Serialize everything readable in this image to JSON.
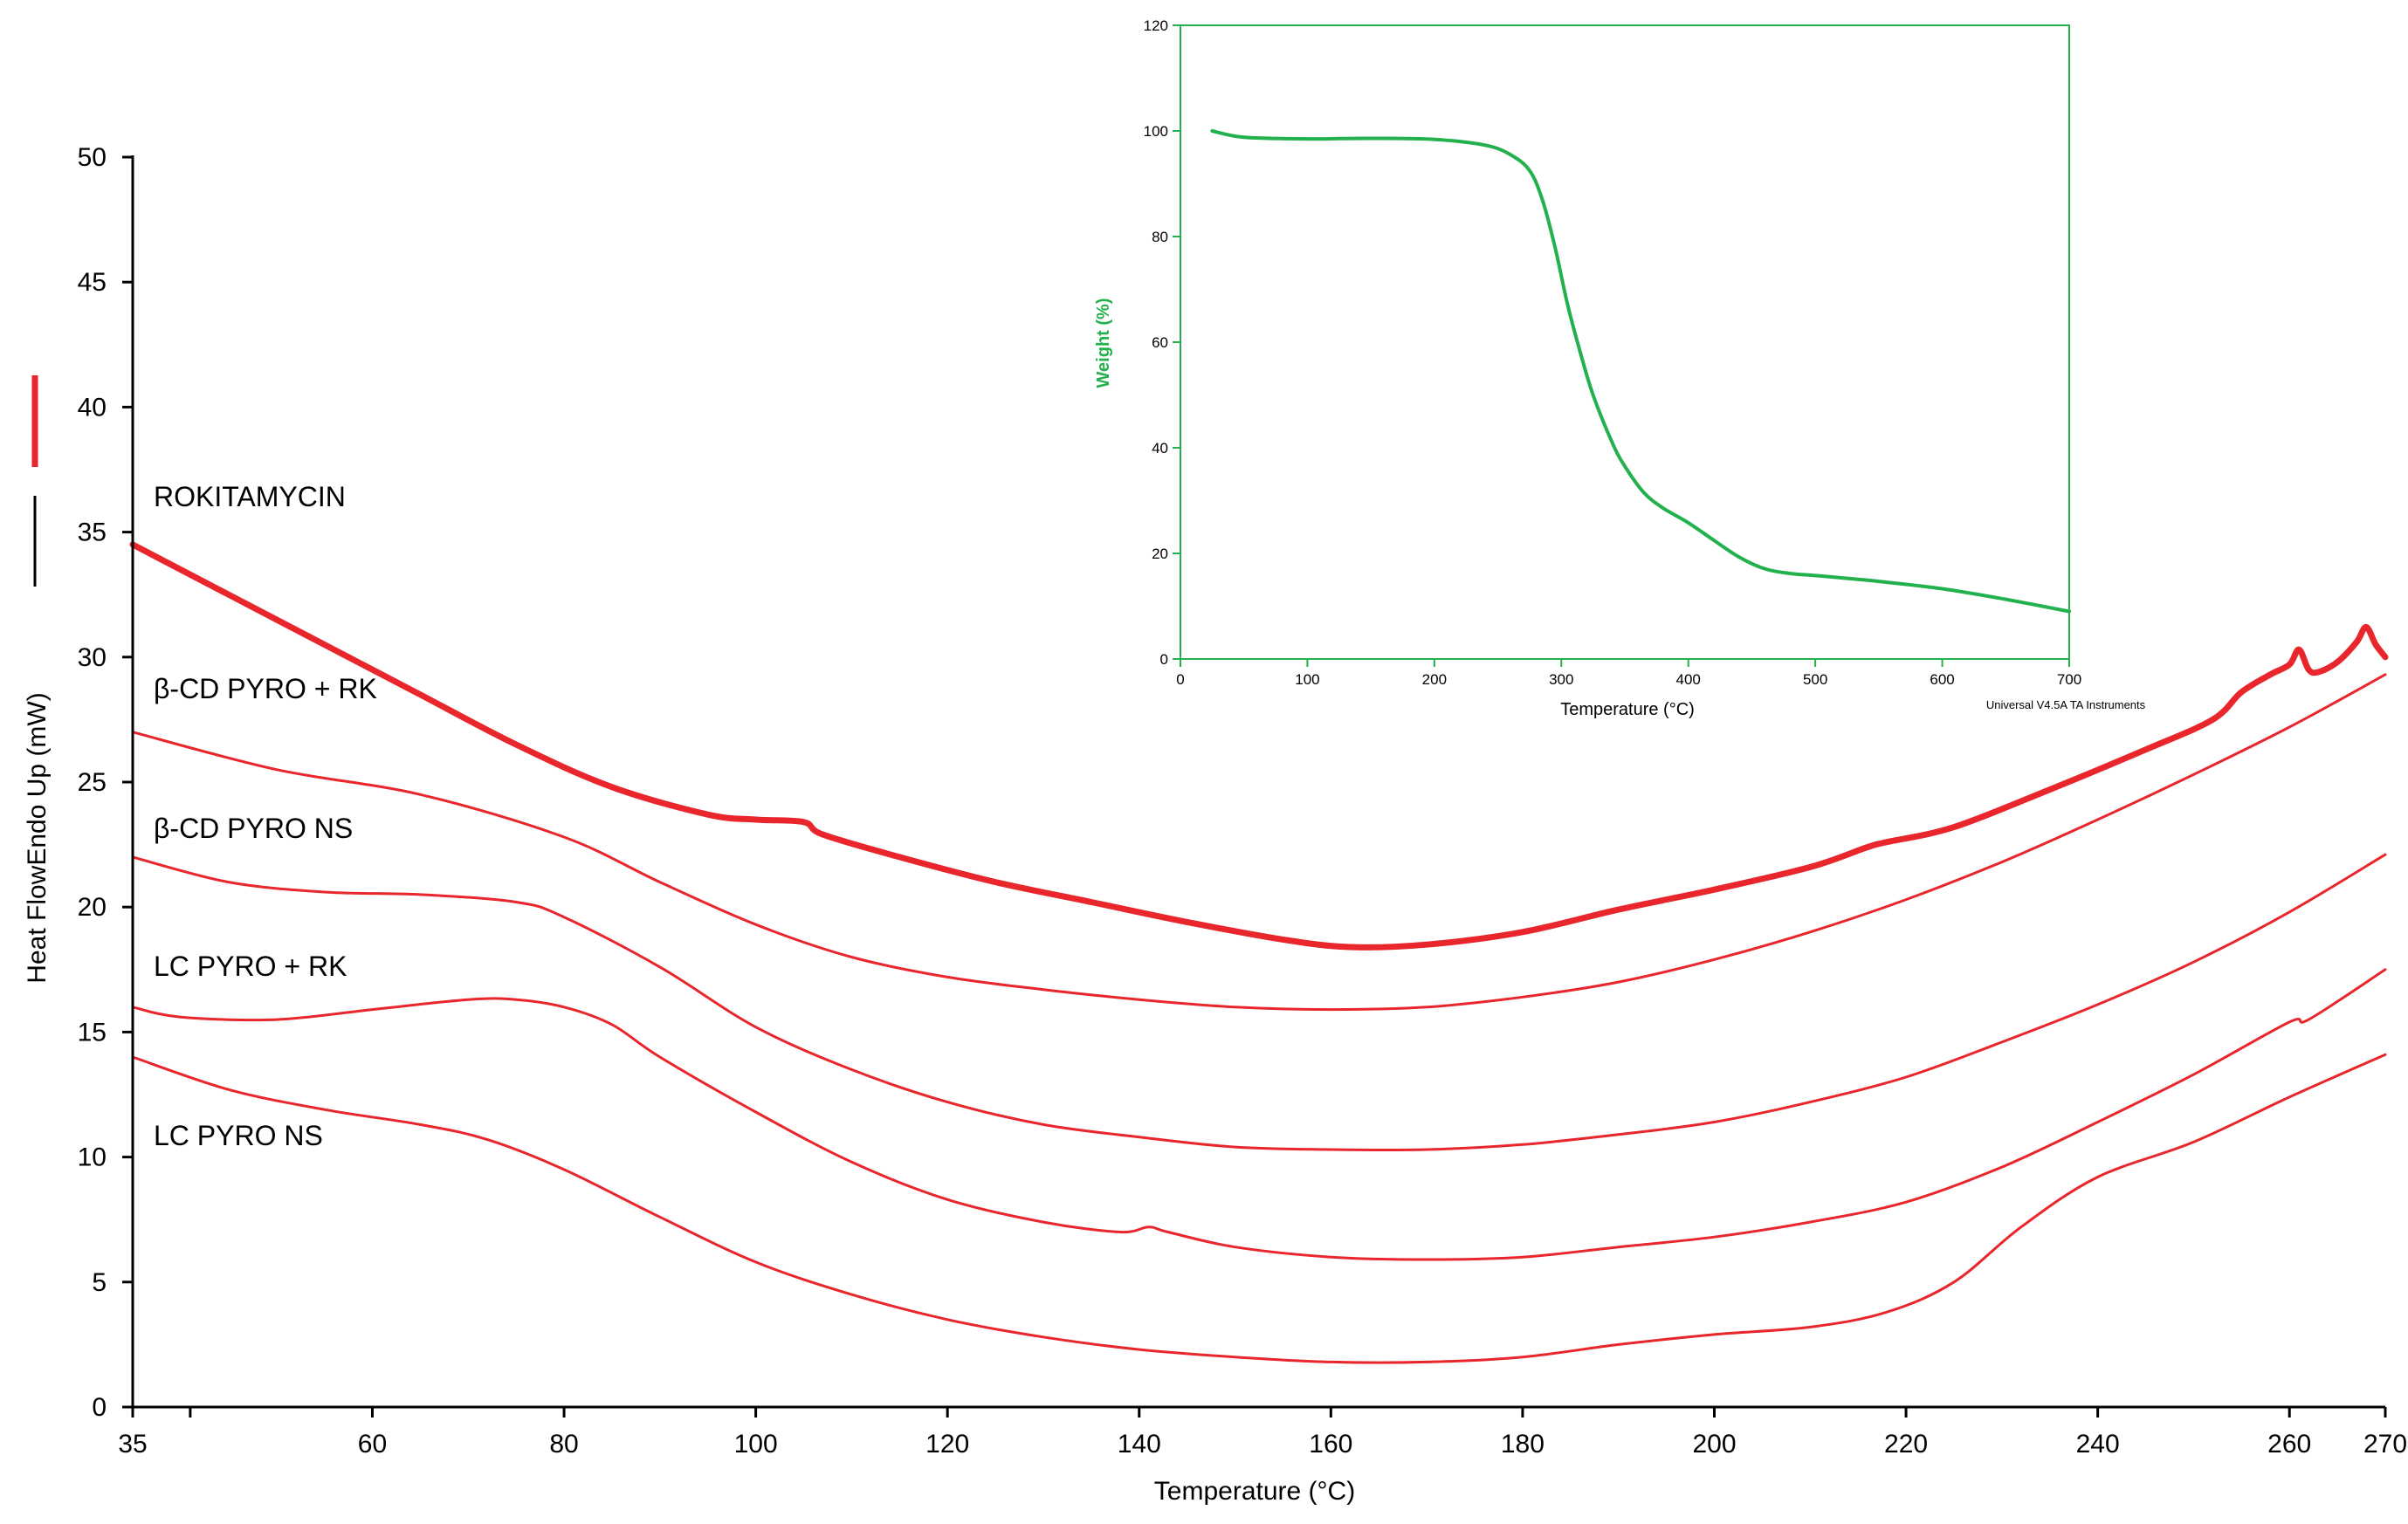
{
  "chart_data": [
    {
      "type": "line",
      "title": "",
      "xlabel": "Temperature (°C)",
      "ylabel": "Heat FlowEndo Up (mW)",
      "xlim": [
        35,
        270
      ],
      "ylim": [
        0,
        50
      ],
      "xticks": [
        35,
        60,
        80,
        100,
        120,
        140,
        160,
        180,
        200,
        220,
        240,
        260,
        270
      ],
      "xtick_labels": [
        "35",
        "60",
        "80",
        "100",
        "120",
        "140",
        "160",
        "180",
        "200",
        "220",
        "240",
        "260",
        "270"
      ],
      "yticks": [
        0,
        5,
        10,
        15,
        20,
        25,
        30,
        35,
        40,
        45,
        50
      ],
      "ytick_labels": [
        "0",
        "5",
        "10",
        "15",
        "20",
        "25",
        "30",
        "35",
        "40",
        "45",
        "50"
      ],
      "grid": false,
      "line_color": "#e8262c",
      "legend_swatch_colors": [
        "#e8262c",
        "#000000"
      ],
      "series": [
        {
          "name": "ROKITAMYCIN",
          "bold": true,
          "x": [
            35,
            45,
            55,
            65,
            75,
            85,
            95,
            100,
            105,
            107,
            115,
            125,
            135,
            145,
            155,
            162,
            170,
            180,
            190,
            200,
            210,
            216,
            218,
            225,
            235,
            245,
            252,
            255,
            258,
            260,
            261,
            262,
            263,
            265,
            267,
            268,
            269,
            270
          ],
          "y": [
            34.5,
            32.5,
            30.5,
            28.5,
            26.5,
            24.8,
            23.7,
            23.5,
            23.4,
            22.9,
            22.0,
            21.0,
            20.2,
            19.4,
            18.7,
            18.4,
            18.5,
            19.0,
            19.9,
            20.7,
            21.6,
            22.4,
            22.6,
            23.2,
            24.7,
            26.3,
            27.5,
            28.6,
            29.3,
            29.7,
            30.3,
            29.5,
            29.4,
            29.8,
            30.6,
            31.2,
            30.5,
            30.0
          ]
        },
        {
          "name": "β-CD PYRO + RK",
          "bold": false,
          "x": [
            35,
            50,
            65,
            80,
            90,
            100,
            110,
            120,
            130,
            140,
            150,
            160,
            170,
            180,
            190,
            200,
            210,
            220,
            230,
            240,
            250,
            260,
            270
          ],
          "y": [
            27.0,
            25.5,
            24.5,
            22.8,
            21.0,
            19.3,
            18.0,
            17.2,
            16.7,
            16.3,
            16.0,
            15.9,
            16.0,
            16.4,
            17.0,
            17.9,
            19.0,
            20.3,
            21.8,
            23.5,
            25.3,
            27.2,
            29.3
          ]
        },
        {
          "name": "β-CD PYRO NS",
          "bold": false,
          "x": [
            35,
            45,
            55,
            65,
            75,
            80,
            90,
            100,
            110,
            120,
            130,
            140,
            150,
            160,
            170,
            180,
            190,
            200,
            210,
            220,
            230,
            240,
            250,
            260,
            270
          ],
          "y": [
            22.0,
            21.0,
            20.6,
            20.5,
            20.2,
            19.6,
            17.6,
            15.2,
            13.5,
            12.2,
            11.3,
            10.8,
            10.4,
            10.3,
            10.3,
            10.5,
            10.9,
            11.4,
            12.2,
            13.2,
            14.6,
            16.1,
            17.8,
            19.8,
            22.1
          ]
        },
        {
          "name": "LC PYRO + RK",
          "bold": false,
          "x": [
            35,
            40,
            50,
            60,
            70,
            75,
            80,
            85,
            90,
            100,
            110,
            120,
            130,
            138,
            141,
            143,
            150,
            160,
            170,
            180,
            190,
            200,
            210,
            220,
            230,
            240,
            250,
            260,
            262,
            270
          ],
          "y": [
            16.0,
            15.6,
            15.5,
            15.9,
            16.3,
            16.3,
            16.0,
            15.3,
            14.0,
            11.8,
            9.8,
            8.3,
            7.4,
            7.0,
            7.2,
            7.0,
            6.4,
            6.0,
            5.9,
            6.0,
            6.4,
            6.8,
            7.4,
            8.2,
            9.6,
            11.4,
            13.3,
            15.4,
            15.5,
            17.5
          ]
        },
        {
          "name": "LC PYRO NS",
          "bold": false,
          "x": [
            35,
            45,
            55,
            65,
            72,
            80,
            90,
            100,
            110,
            120,
            130,
            140,
            150,
            160,
            170,
            180,
            190,
            200,
            210,
            218,
            225,
            232,
            240,
            250,
            260,
            270
          ],
          "y": [
            14.0,
            12.7,
            11.9,
            11.3,
            10.7,
            9.5,
            7.6,
            5.8,
            4.5,
            3.5,
            2.8,
            2.3,
            2.0,
            1.8,
            1.8,
            2.0,
            2.5,
            2.9,
            3.2,
            3.8,
            5.0,
            7.2,
            9.2,
            10.6,
            12.4,
            14.1
          ]
        }
      ]
    },
    {
      "type": "line",
      "title": "",
      "xlabel": "Temperature (°C)",
      "ylabel": "Weight (%)",
      "xlim": [
        0,
        700
      ],
      "ylim": [
        0,
        120
      ],
      "xticks": [
        0,
        100,
        200,
        300,
        400,
        500,
        600,
        700
      ],
      "xtick_labels": [
        "0",
        "100",
        "200",
        "300",
        "400",
        "500",
        "600",
        "700"
      ],
      "yticks": [
        0,
        20,
        40,
        60,
        80,
        100,
        120
      ],
      "ytick_labels": [
        "0",
        "20",
        "40",
        "60",
        "80",
        "100",
        "120"
      ],
      "grid": false,
      "axis_color": "#22b14c",
      "line_color": "#22b14c",
      "credit": "Universal V4.5A TA Instruments",
      "series": [
        {
          "x": [
            25,
            50,
            100,
            150,
            200,
            240,
            260,
            275,
            285,
            295,
            305,
            315,
            325,
            340,
            350,
            365,
            380,
            400,
            420,
            440,
            460,
            480,
            500,
            550,
            600,
            650,
            700
          ],
          "y": [
            100,
            98.8,
            98.5,
            98.6,
            98.4,
            97.3,
            95.5,
            92.5,
            87,
            78,
            67,
            58,
            50,
            41,
            36.5,
            31.5,
            28.6,
            25.8,
            22.5,
            19.3,
            17.1,
            16.2,
            15.8,
            14.7,
            13.3,
            11.3,
            9.0
          ]
        }
      ]
    }
  ]
}
